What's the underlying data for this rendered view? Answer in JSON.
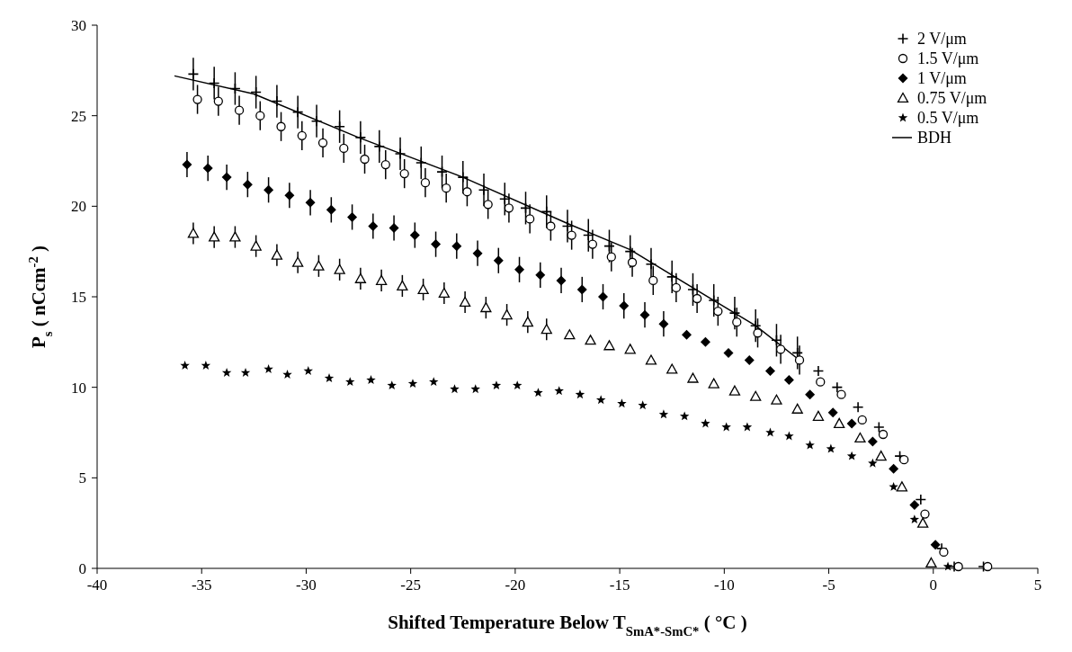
{
  "chart_data": {
    "type": "scatter",
    "xlabel": "Shifted Temperature Below T$_{SmA*-SmC*}$ ( °C )",
    "ylabel": "P$_{s}$ ( nCcm$^{-2}$ )",
    "xlim": [
      -40,
      5
    ],
    "xticks": [
      -40,
      -35,
      -30,
      -25,
      -20,
      -15,
      -10,
      -5,
      0,
      5
    ],
    "ylim": [
      0,
      30
    ],
    "yticks": [
      0,
      5,
      10,
      15,
      20,
      25,
      30
    ],
    "grid": false,
    "legend": "top right",
    "series": [
      {
        "name": "2 V/μm",
        "color": "#000000",
        "marker": "cross",
        "x": [
          -35.4,
          -34.4,
          -33.4,
          -32.4,
          -31.4,
          -30.4,
          -29.5,
          -28.4,
          -27.4,
          -26.5,
          -25.5,
          -24.5,
          -23.5,
          -22.5,
          -21.5,
          -20.5,
          -19.5,
          -18.5,
          -17.5,
          -16.5,
          -15.5,
          -14.5,
          -13.5,
          -12.5,
          -11.5,
          -10.5,
          -9.5,
          -8.5,
          -7.5,
          -6.5,
          -5.5,
          -4.6,
          -3.6,
          -2.6,
          -1.6,
          -0.6,
          0.4,
          1.0,
          2.4
        ],
        "values": [
          27.3,
          26.8,
          26.5,
          26.3,
          25.8,
          25.2,
          24.7,
          24.4,
          23.8,
          23.3,
          22.9,
          22.4,
          21.9,
          21.6,
          20.9,
          20.4,
          19.9,
          19.7,
          18.9,
          18.4,
          17.8,
          17.5,
          16.8,
          16.1,
          15.4,
          14.8,
          14.1,
          13.4,
          12.6,
          11.9,
          10.9,
          10.0,
          8.9,
          7.8,
          6.2,
          3.8,
          1.1,
          0.1,
          0.1
        ],
        "errors": [
          0.9,
          0.9,
          0.9,
          0.9,
          0.9,
          0.9,
          0.9,
          0.9,
          0.9,
          0.9,
          0.9,
          0.9,
          0.9,
          0.9,
          0.9,
          0.9,
          0.9,
          0.9,
          0.9,
          0.9,
          0.9,
          0.9,
          0.9,
          0.9,
          0.9,
          0.9,
          0.9,
          0.9,
          0.9,
          0.9,
          null,
          null,
          null,
          null,
          null,
          null,
          null,
          null,
          null
        ]
      },
      {
        "name": "1.5 V/μm",
        "color": "#000000",
        "marker": "circle",
        "x": [
          -35.2,
          -34.2,
          -33.2,
          -32.2,
          -31.2,
          -30.2,
          -29.2,
          -28.2,
          -27.2,
          -26.2,
          -25.3,
          -24.3,
          -23.3,
          -22.3,
          -21.3,
          -20.3,
          -19.3,
          -18.3,
          -17.3,
          -16.3,
          -15.4,
          -14.4,
          -13.4,
          -12.3,
          -11.3,
          -10.3,
          -9.4,
          -8.4,
          -7.3,
          -6.4,
          -5.4,
          -4.4,
          -3.4,
          -2.4,
          -1.4,
          -0.4,
          0.5,
          1.2,
          2.6
        ],
        "values": [
          25.9,
          25.8,
          25.3,
          25.0,
          24.4,
          23.9,
          23.5,
          23.2,
          22.6,
          22.3,
          21.8,
          21.3,
          21.0,
          20.8,
          20.1,
          19.9,
          19.3,
          18.9,
          18.4,
          17.9,
          17.2,
          16.9,
          15.9,
          15.5,
          14.9,
          14.2,
          13.6,
          13.0,
          12.1,
          11.5,
          10.3,
          9.6,
          8.2,
          7.4,
          6.0,
          3.0,
          0.9,
          0.1,
          0.1
        ],
        "errors": [
          0.8,
          0.8,
          0.8,
          0.8,
          0.8,
          0.8,
          0.8,
          0.8,
          0.8,
          0.8,
          0.8,
          0.8,
          0.8,
          0.8,
          0.8,
          0.8,
          0.8,
          0.8,
          0.8,
          0.8,
          0.8,
          0.8,
          0.8,
          0.8,
          0.8,
          0.8,
          0.8,
          0.8,
          0.8,
          0.8,
          null,
          null,
          null,
          null,
          null,
          null,
          null,
          null,
          null
        ]
      },
      {
        "name": "1 V/μm",
        "color": "#000000",
        "marker": "diamond",
        "x": [
          -35.7,
          -34.7,
          -33.8,
          -32.8,
          -31.8,
          -30.8,
          -29.8,
          -28.8,
          -27.8,
          -26.8,
          -25.8,
          -24.8,
          -23.8,
          -22.8,
          -21.8,
          -20.8,
          -19.8,
          -18.8,
          -17.8,
          -16.8,
          -15.8,
          -14.8,
          -13.8,
          -12.9,
          -11.8,
          -10.9,
          -9.8,
          -8.8,
          -7.8,
          -6.9,
          -5.9,
          -4.8,
          -3.9,
          -2.9,
          -1.9,
          -0.9,
          0.1
        ],
        "values": [
          22.3,
          22.1,
          21.6,
          21.2,
          20.9,
          20.6,
          20.2,
          19.8,
          19.4,
          18.9,
          18.8,
          18.4,
          17.9,
          17.8,
          17.4,
          17.0,
          16.5,
          16.2,
          15.9,
          15.4,
          15.0,
          14.5,
          14.0,
          13.5,
          12.9,
          12.5,
          11.9,
          11.5,
          10.9,
          10.4,
          9.6,
          8.6,
          8.0,
          7.0,
          5.5,
          3.5,
          1.3
        ],
        "errors": [
          0.7,
          0.7,
          0.7,
          0.7,
          0.7,
          0.7,
          0.7,
          0.7,
          0.7,
          0.7,
          0.7,
          0.7,
          0.7,
          0.7,
          0.7,
          0.7,
          0.7,
          0.7,
          0.7,
          0.7,
          0.7,
          0.7,
          0.7,
          0.7,
          null,
          null,
          null,
          null,
          null,
          null,
          null,
          null,
          null,
          null,
          null,
          null,
          null
        ]
      },
      {
        "name": "0.75 V/μm",
        "color": "#000000",
        "marker": "triangle",
        "x": [
          -35.4,
          -34.4,
          -33.4,
          -32.4,
          -31.4,
          -30.4,
          -29.4,
          -28.4,
          -27.4,
          -26.4,
          -25.4,
          -24.4,
          -23.4,
          -22.4,
          -21.4,
          -20.4,
          -19.4,
          -18.5,
          -17.4,
          -16.4,
          -15.5,
          -14.5,
          -13.5,
          -12.5,
          -11.5,
          -10.5,
          -9.5,
          -8.5,
          -7.5,
          -6.5,
          -5.5,
          -4.5,
          -3.5,
          -2.5,
          -1.5,
          -0.5,
          -0.1
        ],
        "values": [
          18.5,
          18.3,
          18.3,
          17.8,
          17.3,
          16.9,
          16.7,
          16.5,
          16.0,
          15.9,
          15.6,
          15.4,
          15.2,
          14.7,
          14.4,
          14.0,
          13.6,
          13.2,
          12.9,
          12.6,
          12.3,
          12.1,
          11.5,
          11.0,
          10.5,
          10.2,
          9.8,
          9.5,
          9.3,
          8.8,
          8.4,
          8.0,
          7.2,
          6.2,
          4.5,
          2.5,
          0.3
        ],
        "errors": [
          0.6,
          0.6,
          0.6,
          0.6,
          0.6,
          0.6,
          0.6,
          0.6,
          0.6,
          0.6,
          0.6,
          0.6,
          0.6,
          0.6,
          0.6,
          0.6,
          0.6,
          0.6,
          null,
          null,
          null,
          null,
          null,
          null,
          null,
          null,
          null,
          null,
          null,
          null,
          null,
          null,
          null,
          null,
          null,
          null,
          null
        ]
      },
      {
        "name": "0.5 V/μm",
        "color": "#000000",
        "marker": "star",
        "x": [
          -35.8,
          -34.8,
          -33.8,
          -32.9,
          -31.8,
          -30.9,
          -29.9,
          -28.9,
          -27.9,
          -26.9,
          -25.9,
          -24.9,
          -23.9,
          -22.9,
          -21.9,
          -20.9,
          -19.9,
          -18.9,
          -17.9,
          -16.9,
          -15.9,
          -14.9,
          -13.9,
          -12.9,
          -11.9,
          -10.9,
          -9.9,
          -8.9,
          -7.8,
          -6.9,
          -5.9,
          -4.9,
          -3.9,
          -2.9,
          -1.9,
          -0.9,
          0.7
        ],
        "values": [
          11.2,
          11.2,
          10.8,
          10.8,
          11.0,
          10.7,
          10.9,
          10.5,
          10.3,
          10.4,
          10.1,
          10.2,
          10.3,
          9.9,
          9.9,
          10.1,
          10.1,
          9.7,
          9.8,
          9.6,
          9.3,
          9.1,
          9.0,
          8.5,
          8.4,
          8.0,
          7.8,
          7.8,
          7.5,
          7.3,
          6.8,
          6.6,
          6.2,
          5.8,
          4.5,
          2.7,
          0.1
        ]
      },
      {
        "name": "BDH",
        "color": "#000000",
        "type": "line",
        "marker": "none",
        "x": [
          -36.3,
          -32.5,
          -27.5,
          -22.5,
          -17.4,
          -14.5,
          -10.5,
          -8.5,
          -6.4
        ],
        "values": [
          27.2,
          26.2,
          23.8,
          21.6,
          19.0,
          17.6,
          14.8,
          13.4,
          11.5
        ]
      }
    ]
  }
}
